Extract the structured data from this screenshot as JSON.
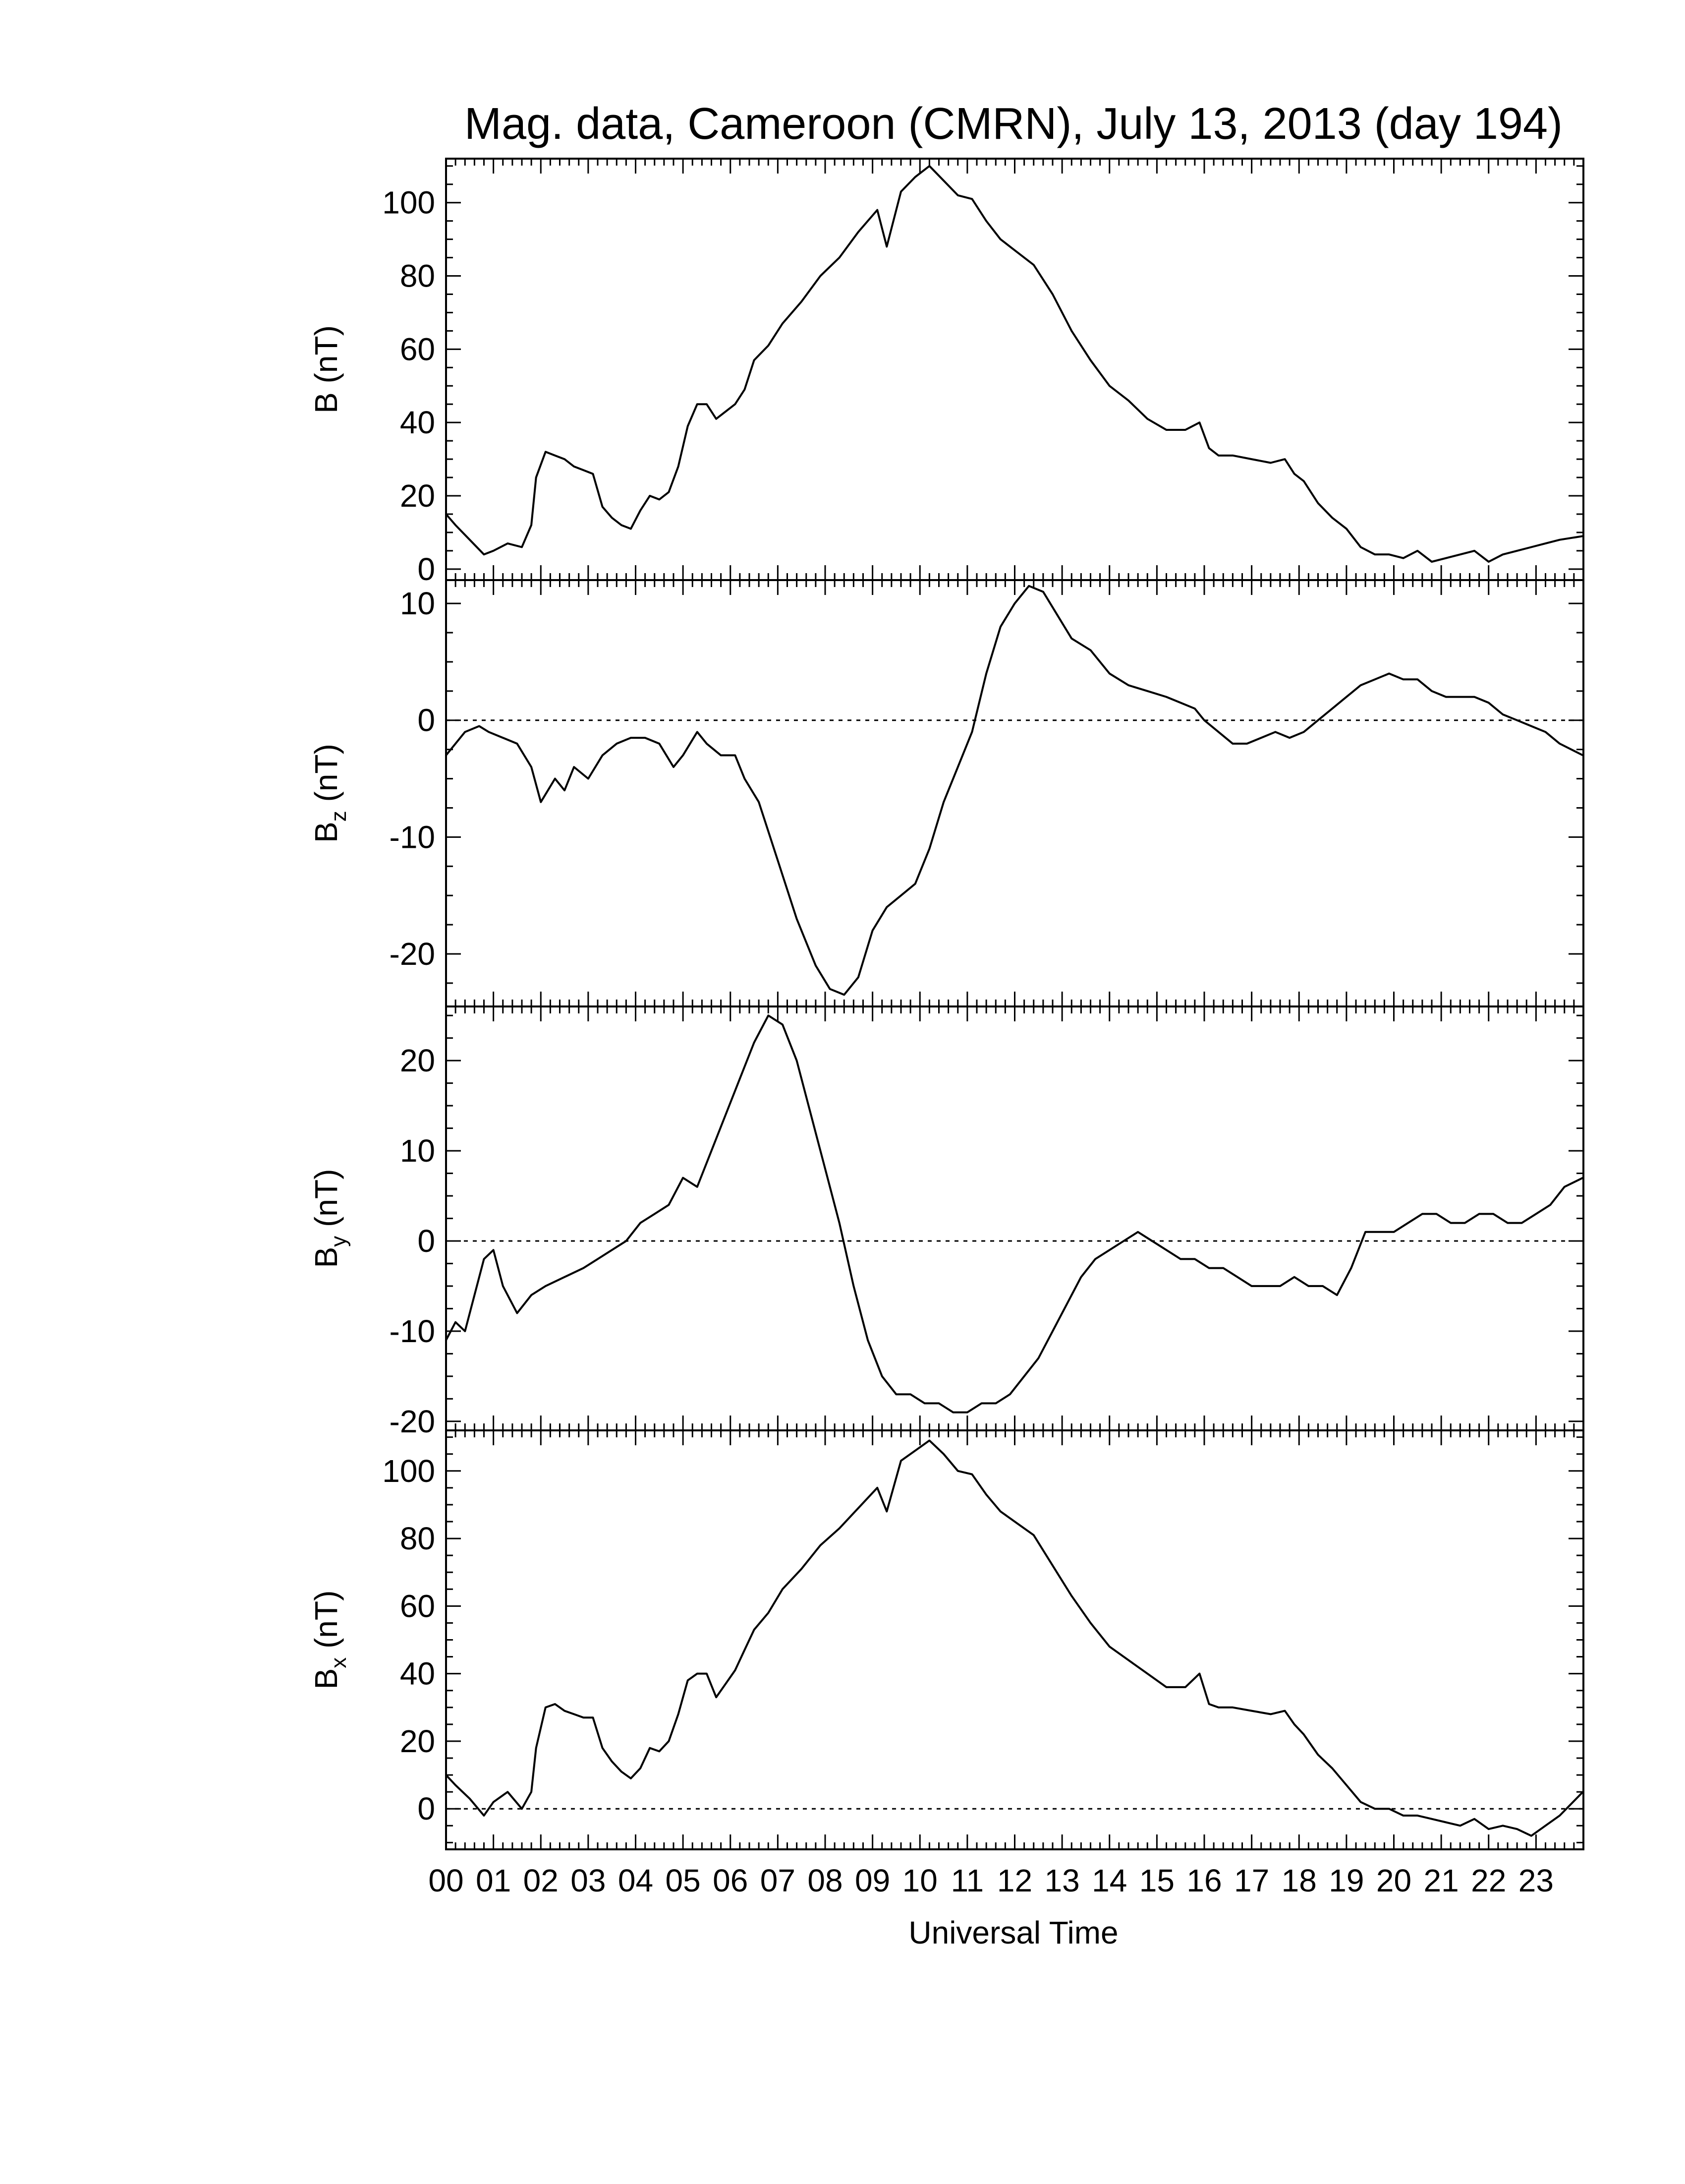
{
  "chart_data": {
    "type": "line",
    "title": "Mag. data, Cameroon (CMRN), July 13, 2013 (day 194)",
    "xlabel": "Universal Time",
    "x_tick_labels": [
      "00",
      "01",
      "02",
      "03",
      "04",
      "05",
      "06",
      "07",
      "08",
      "09",
      "10",
      "11",
      "12",
      "13",
      "14",
      "15",
      "16",
      "17",
      "18",
      "19",
      "20",
      "21",
      "22",
      "23"
    ],
    "xlim": [
      0,
      24
    ],
    "grid": false,
    "panels": [
      {
        "id": "B",
        "ylabel": "B (nT)",
        "ylabel_main": "B",
        "ylabel_sub": "",
        "ylabel_unit": " (nT)",
        "ylim": [
          -3,
          112
        ],
        "yticks": [
          0,
          20,
          40,
          60,
          80,
          100
        ],
        "zero_line": false,
        "x": [
          0,
          0.2,
          0.5,
          0.8,
          1.0,
          1.3,
          1.6,
          1.8,
          1.9,
          2.1,
          2.3,
          2.5,
          2.7,
          2.9,
          3.1,
          3.3,
          3.5,
          3.7,
          3.9,
          4.1,
          4.3,
          4.5,
          4.7,
          4.9,
          5.1,
          5.3,
          5.5,
          5.7,
          5.9,
          6.1,
          6.3,
          6.5,
          6.8,
          7.1,
          7.5,
          7.9,
          8.3,
          8.7,
          9.1,
          9.3,
          9.6,
          9.9,
          10.2,
          10.5,
          10.8,
          11.1,
          11.4,
          11.7,
          12.0,
          12.4,
          12.8,
          13.2,
          13.6,
          14.0,
          14.4,
          14.8,
          15.2,
          15.6,
          15.9,
          16.1,
          16.3,
          16.6,
          17.0,
          17.4,
          17.7,
          17.9,
          18.1,
          18.4,
          18.7,
          19.0,
          19.3,
          19.6,
          19.9,
          20.2,
          20.5,
          20.8,
          21.1,
          21.4,
          21.7,
          22.0,
          22.3,
          22.6,
          22.9,
          23.2,
          23.5,
          23.99
        ],
        "values": [
          15,
          12,
          8,
          4,
          5,
          7,
          6,
          12,
          25,
          32,
          31,
          30,
          28,
          27,
          26,
          17,
          14,
          12,
          11,
          16,
          20,
          19,
          21,
          28,
          39,
          45,
          45,
          41,
          43,
          45,
          49,
          57,
          61,
          67,
          73,
          80,
          85,
          92,
          98,
          88,
          103,
          107,
          110,
          106,
          102,
          101,
          95,
          90,
          87,
          83,
          75,
          65,
          57,
          50,
          46,
          41,
          38,
          38,
          40,
          33,
          31,
          31,
          30,
          29,
          30,
          26,
          24,
          18,
          14,
          11,
          6,
          4,
          4,
          3,
          5,
          2,
          3,
          4,
          5,
          2,
          4,
          5,
          6,
          7,
          8,
          9
        ],
        "color": "#000000"
      },
      {
        "id": "Bz",
        "ylabel": "Bz (nT)",
        "ylabel_main": "B",
        "ylabel_sub": "z",
        "ylabel_unit": " (nT)",
        "ylim": [
          -24.5,
          12
        ],
        "yticks": [
          -20,
          -10,
          0,
          10
        ],
        "zero_line": true,
        "x": [
          0,
          0.2,
          0.4,
          0.7,
          0.9,
          1.2,
          1.5,
          1.8,
          2.0,
          2.3,
          2.5,
          2.7,
          3.0,
          3.3,
          3.6,
          3.9,
          4.2,
          4.5,
          4.8,
          5.0,
          5.3,
          5.5,
          5.8,
          6.1,
          6.3,
          6.6,
          7.0,
          7.4,
          7.8,
          8.1,
          8.4,
          8.7,
          9.0,
          9.3,
          9.6,
          9.9,
          10.2,
          10.5,
          10.8,
          11.1,
          11.4,
          11.7,
          12.0,
          12.3,
          12.6,
          12.9,
          13.2,
          13.6,
          14.0,
          14.4,
          14.8,
          15.2,
          15.5,
          15.8,
          16.0,
          16.3,
          16.6,
          16.9,
          17.2,
          17.5,
          17.8,
          18.1,
          18.4,
          18.7,
          19.0,
          19.3,
          19.6,
          19.9,
          20.2,
          20.5,
          20.8,
          21.1,
          21.4,
          21.7,
          22.0,
          22.3,
          22.6,
          22.9,
          23.2,
          23.5,
          23.99
        ],
        "values": [
          -3,
          -2,
          -1,
          -0.5,
          -1,
          -1.5,
          -2,
          -4,
          -7,
          -5,
          -6,
          -4,
          -5,
          -3,
          -2,
          -1.5,
          -1.5,
          -2,
          -4,
          -3,
          -1,
          -2,
          -3,
          -3,
          -5,
          -7,
          -12,
          -17,
          -21,
          -23,
          -23.5,
          -22,
          -18,
          -16,
          -15,
          -14,
          -11,
          -7,
          -4,
          -1,
          4,
          8,
          10,
          11.5,
          11,
          9,
          7,
          6,
          4,
          3,
          2.5,
          2,
          1.5,
          1,
          0,
          -1,
          -2,
          -2,
          -1.5,
          -1,
          -1.5,
          -1,
          0,
          1,
          2,
          3,
          3.5,
          4,
          3.5,
          3.5,
          2.5,
          2,
          2,
          2,
          1.5,
          0.5,
          0,
          -0.5,
          -1,
          -2,
          -3
        ],
        "color": "#000000"
      },
      {
        "id": "By",
        "ylabel": "By (nT)",
        "ylabel_main": "B",
        "ylabel_sub": "y",
        "ylabel_unit": " (nT)",
        "ylim": [
          -21,
          26
        ],
        "yticks": [
          -20,
          -10,
          0,
          10,
          20
        ],
        "zero_line": true,
        "x": [
          0,
          0.2,
          0.4,
          0.6,
          0.8,
          1.0,
          1.2,
          1.5,
          1.8,
          2.1,
          2.5,
          2.9,
          3.2,
          3.5,
          3.8,
          4.1,
          4.4,
          4.7,
          5.0,
          5.3,
          5.6,
          5.9,
          6.2,
          6.5,
          6.8,
          7.1,
          7.4,
          7.7,
          8.0,
          8.3,
          8.6,
          8.9,
          9.2,
          9.5,
          9.8,
          10.1,
          10.4,
          10.7,
          11.0,
          11.3,
          11.6,
          11.9,
          12.2,
          12.5,
          12.8,
          13.1,
          13.4,
          13.7,
          14.0,
          14.3,
          14.6,
          14.9,
          15.2,
          15.5,
          15.8,
          16.1,
          16.4,
          16.7,
          17.0,
          17.3,
          17.6,
          17.9,
          18.2,
          18.5,
          18.8,
          19.1,
          19.4,
          19.7,
          20.0,
          20.3,
          20.6,
          20.9,
          21.2,
          21.5,
          21.8,
          22.1,
          22.4,
          22.7,
          23.0,
          23.3,
          23.6,
          23.99
        ],
        "values": [
          -11,
          -9,
          -10,
          -6,
          -2,
          -1,
          -5,
          -8,
          -6,
          -5,
          -4,
          -3,
          -2,
          -1,
          0,
          2,
          3,
          4,
          7,
          6,
          10,
          14,
          18,
          22,
          25,
          24,
          20,
          14,
          8,
          2,
          -5,
          -11,
          -15,
          -17,
          -17,
          -18,
          -18,
          -19,
          -19,
          -18,
          -18,
          -17,
          -15,
          -13,
          -10,
          -7,
          -4,
          -2,
          -1,
          0,
          1,
          0,
          -1,
          -2,
          -2,
          -3,
          -3,
          -4,
          -5,
          -5,
          -5,
          -4,
          -5,
          -5,
          -6,
          -3,
          1,
          1,
          1,
          2,
          3,
          3,
          2,
          2,
          3,
          3,
          2,
          2,
          3,
          4,
          6,
          7
        ],
        "color": "#000000"
      },
      {
        "id": "Bx",
        "ylabel": "Bx (nT)",
        "ylabel_main": "B",
        "ylabel_sub": "x",
        "ylabel_unit": " (nT)",
        "ylim": [
          -12,
          112
        ],
        "yticks": [
          0,
          20,
          40,
          60,
          80,
          100
        ],
        "zero_line": true,
        "x": [
          0,
          0.2,
          0.5,
          0.8,
          1.0,
          1.3,
          1.6,
          1.8,
          1.9,
          2.1,
          2.3,
          2.5,
          2.7,
          2.9,
          3.1,
          3.3,
          3.5,
          3.7,
          3.9,
          4.1,
          4.3,
          4.5,
          4.7,
          4.9,
          5.1,
          5.3,
          5.5,
          5.7,
          5.9,
          6.1,
          6.3,
          6.5,
          6.8,
          7.1,
          7.5,
          7.9,
          8.3,
          8.7,
          9.1,
          9.3,
          9.6,
          9.9,
          10.2,
          10.5,
          10.8,
          11.1,
          11.4,
          11.7,
          12.0,
          12.4,
          12.8,
          13.2,
          13.6,
          14.0,
          14.4,
          14.8,
          15.2,
          15.6,
          15.9,
          16.1,
          16.3,
          16.6,
          17.0,
          17.4,
          17.7,
          17.9,
          18.1,
          18.4,
          18.7,
          19.0,
          19.3,
          19.6,
          19.9,
          20.2,
          20.5,
          20.8,
          21.1,
          21.4,
          21.7,
          22.0,
          22.3,
          22.6,
          22.9,
          23.2,
          23.5,
          23.99
        ],
        "values": [
          10,
          7,
          3,
          -2,
          2,
          5,
          0,
          5,
          18,
          30,
          31,
          29,
          28,
          27,
          27,
          18,
          14,
          11,
          9,
          12,
          18,
          17,
          20,
          28,
          38,
          40,
          40,
          33,
          37,
          41,
          47,
          53,
          58,
          65,
          71,
          78,
          83,
          89,
          95,
          88,
          103,
          106,
          109,
          105,
          100,
          99,
          93,
          88,
          85,
          81,
          72,
          63,
          55,
          48,
          44,
          40,
          36,
          36,
          40,
          31,
          30,
          30,
          29,
          28,
          29,
          25,
          22,
          16,
          12,
          7,
          2,
          0,
          0,
          -2,
          -2,
          -3,
          -4,
          -5,
          -3,
          -6,
          -5,
          -6,
          -8,
          -5,
          -2,
          5
        ],
        "color": "#000000"
      }
    ]
  }
}
